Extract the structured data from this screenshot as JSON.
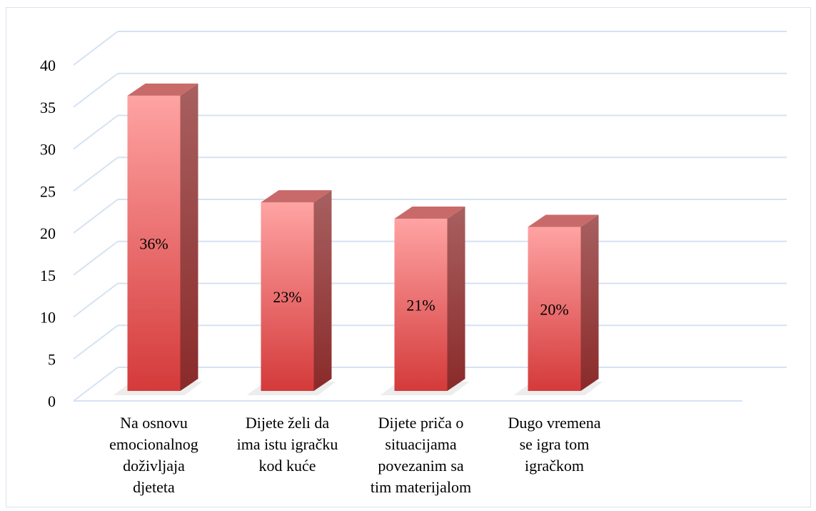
{
  "chart_data": {
    "type": "bar",
    "style": "3d-column",
    "categories": [
      [
        "Na osnovu",
        "emocionalnog",
        "doživljaja",
        "djeteta"
      ],
      [
        "Dijete želi da",
        "ima istu igračku",
        "kod kuće"
      ],
      [
        "Dijete priča o",
        "situacijama",
        "povezanim sa",
        "tim materijalom"
      ],
      [
        "Dugo vremena",
        "se igra tom",
        "igračkom"
      ]
    ],
    "values": [
      36,
      23,
      21,
      20
    ],
    "data_labels": [
      "36%",
      "23%",
      "21%",
      "20%"
    ],
    "yticks": [
      "0",
      "5",
      "10",
      "15",
      "20",
      "25",
      "30",
      "35",
      "40"
    ],
    "ylim": [
      0,
      40
    ],
    "grid": true,
    "legend": "none",
    "colors": {
      "bar_front_light": "#ff9e9e",
      "bar_front_dark": "#d63a3a",
      "bar_side": "#9e3434",
      "bar_top": "#c96a6a",
      "grid": "#d5e2f2"
    }
  }
}
